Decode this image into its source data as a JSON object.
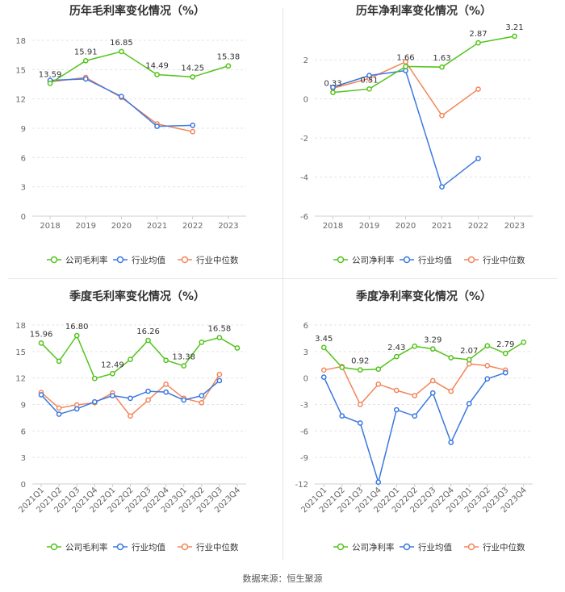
{
  "colors": {
    "company": "#52c41a",
    "avg": "#3a78e0",
    "median": "#f2865b"
  },
  "legend": {
    "avg": "行业均值",
    "median": "行业中位数"
  },
  "source": "数据来源：恒生聚源",
  "chart_data": [
    {
      "type": "line",
      "title": "历年毛利率变化情况（%）",
      "categories": [
        "2018",
        "2019",
        "2020",
        "2021",
        "2022",
        "2023"
      ],
      "ylim": [
        0,
        18
      ],
      "yticks": [
        0,
        3,
        6,
        9,
        12,
        15,
        18
      ],
      "series": [
        {
          "name": "公司毛利率",
          "key": "company",
          "values": [
            13.59,
            15.91,
            16.85,
            14.49,
            14.25,
            15.38
          ],
          "labels": [
            "13.59",
            "15.91",
            "16.85",
            "14.49",
            "14.25",
            "15.38"
          ]
        },
        {
          "name": "行业均值",
          "key": "avg",
          "values": [
            13.9,
            14.05,
            12.25,
            9.2,
            9.3,
            null
          ]
        },
        {
          "name": "行业中位数",
          "key": "median",
          "values": [
            13.75,
            14.2,
            12.15,
            9.45,
            8.65,
            null
          ]
        }
      ]
    },
    {
      "type": "line",
      "title": "历年净利率变化情况（%）",
      "categories": [
        "2018",
        "2019",
        "2020",
        "2021",
        "2022",
        "2023"
      ],
      "ylim": [
        -6,
        3
      ],
      "yticks": [
        -6,
        -4,
        -2,
        0,
        2
      ],
      "series": [
        {
          "name": "公司净利率",
          "key": "company",
          "values": [
            0.33,
            0.51,
            1.66,
            1.63,
            2.87,
            3.21
          ],
          "labels": [
            "0.33",
            "0.51",
            "1.66",
            "1.63",
            "2.87",
            "3.21"
          ]
        },
        {
          "name": "行业均值",
          "key": "avg",
          "values": [
            0.6,
            1.2,
            1.45,
            -4.5,
            -3.05,
            null
          ]
        },
        {
          "name": "行业中位数",
          "key": "median",
          "values": [
            0.55,
            1.05,
            1.9,
            -0.85,
            0.5,
            null
          ]
        }
      ]
    },
    {
      "type": "line",
      "title": "季度毛利率变化情况（%）",
      "categories": [
        "2021Q1",
        "2021Q2",
        "2021Q3",
        "2021Q4",
        "2022Q1",
        "2022Q2",
        "2022Q3",
        "2022Q4",
        "2023Q1",
        "2023Q2",
        "2023Q3",
        "2023Q4"
      ],
      "ylim": [
        0,
        18
      ],
      "yticks": [
        0,
        3,
        6,
        9,
        12,
        15,
        18
      ],
      "series": [
        {
          "name": "公司毛利率",
          "key": "company",
          "values": [
            15.96,
            13.9,
            16.8,
            11.95,
            12.49,
            14.1,
            16.26,
            14.0,
            13.38,
            16.05,
            16.58,
            15.4
          ],
          "labels": [
            "15.96",
            null,
            "16.80",
            null,
            "12.49",
            null,
            "16.26",
            null,
            "13.38",
            null,
            "16.58",
            null
          ]
        },
        {
          "name": "行业均值",
          "key": "avg",
          "values": [
            10.1,
            7.9,
            8.5,
            9.3,
            10.0,
            9.7,
            10.5,
            10.4,
            9.5,
            10.0,
            11.7,
            null
          ]
        },
        {
          "name": "行业中位数",
          "key": "median",
          "values": [
            10.35,
            8.6,
            8.95,
            9.2,
            10.3,
            7.7,
            9.5,
            11.3,
            9.7,
            9.2,
            12.4,
            null
          ]
        }
      ]
    },
    {
      "type": "line",
      "title": "季度净利率变化情况（%）",
      "categories": [
        "2021Q1",
        "2021Q2",
        "2021Q3",
        "2021Q4",
        "2022Q1",
        "2022Q2",
        "2022Q3",
        "2022Q4",
        "2023Q1",
        "2023Q2",
        "2023Q3",
        "2023Q4"
      ],
      "ylim": [
        -12,
        6
      ],
      "yticks": [
        -12,
        -9,
        -6,
        -3,
        0,
        3,
        6
      ],
      "series": [
        {
          "name": "公司净利率",
          "key": "company",
          "values": [
            3.45,
            1.2,
            0.92,
            1.0,
            2.43,
            3.6,
            3.29,
            2.3,
            2.07,
            3.65,
            2.79,
            4.05
          ],
          "labels": [
            "3.45",
            null,
            "0.92",
            null,
            "2.43",
            null,
            "3.29",
            null,
            "2.07",
            null,
            "2.79",
            null
          ]
        },
        {
          "name": "行业均值",
          "key": "avg",
          "values": [
            0.1,
            -4.3,
            -5.1,
            -11.8,
            -3.6,
            -4.3,
            -1.7,
            -7.3,
            -2.9,
            -0.1,
            0.6,
            null
          ]
        },
        {
          "name": "行业中位数",
          "key": "median",
          "values": [
            0.9,
            1.3,
            -3.0,
            -0.7,
            -1.4,
            -2.0,
            -0.3,
            -1.5,
            1.6,
            1.4,
            0.9,
            null
          ]
        }
      ]
    }
  ]
}
